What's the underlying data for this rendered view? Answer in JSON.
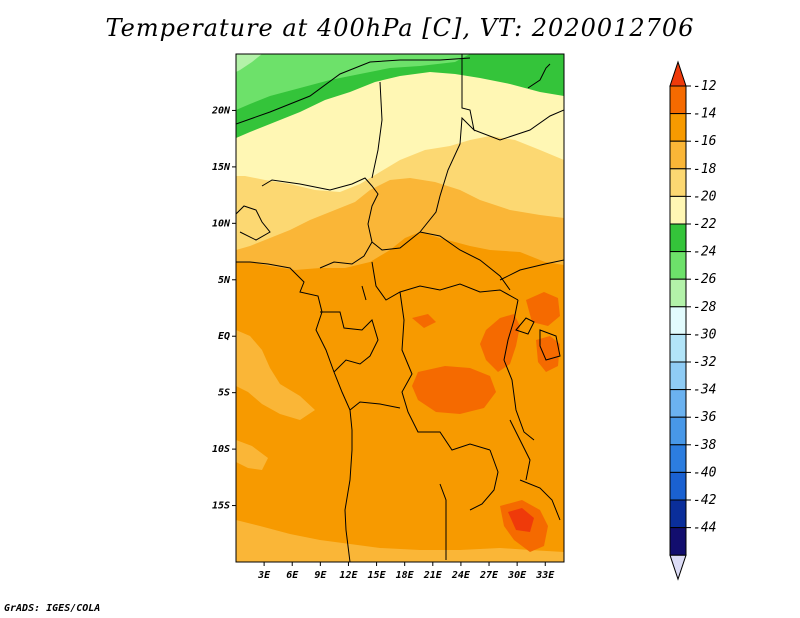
{
  "title": "Temperature at 400hPa [C], VT: 2020012706",
  "credit": "GrADS: IGES/COLA",
  "map": {
    "lat_labels": [
      "20N",
      "15N",
      "10N",
      "5N",
      "EQ",
      "5S",
      "10S",
      "15S"
    ],
    "lat_values": [
      20,
      15,
      10,
      5,
      0,
      -5,
      -10,
      -15
    ],
    "lon_labels": [
      "3E",
      "6E",
      "9E",
      "12E",
      "15E",
      "18E",
      "21E",
      "24E",
      "27E",
      "30E",
      "33E"
    ],
    "lon_values": [
      3,
      6,
      9,
      12,
      15,
      18,
      21,
      24,
      27,
      30,
      33
    ],
    "lat_range": [
      -20,
      25
    ],
    "lon_range": [
      0,
      35
    ],
    "field": "Temperature at 400hPa",
    "units": "C",
    "valid_time": "2020012706"
  },
  "colorbar": {
    "labels": [
      "-12",
      "-14",
      "-16",
      "-18",
      "-20",
      "-22",
      "-24",
      "-26",
      "-28",
      "-30",
      "-32",
      "-34",
      "-36",
      "-38",
      "-40",
      "-42",
      "-44"
    ],
    "colors": [
      "#ef3a0a",
      "#f56a00",
      "#f79a00",
      "#fab637",
      "#fcd872",
      "#fff7b4",
      "#34c43a",
      "#6de16a",
      "#b3f2a9",
      "#e2fbfd",
      "#b2e4f8",
      "#8fccf5",
      "#6bb2f0",
      "#4898e8",
      "#2c7ddf",
      "#1a61d1",
      "#0a2e9a",
      "#120e6e",
      "#dcdcf6"
    ]
  },
  "field_colors": {
    "c12": "#ef3a0a",
    "c14": "#f56a00",
    "c16": "#f79a00",
    "c18": "#fab637",
    "c20": "#fcd872",
    "c22": "#fff7b4",
    "c24": "#34c43a",
    "c26": "#6de16a",
    "c28": "#b3f2a9"
  }
}
